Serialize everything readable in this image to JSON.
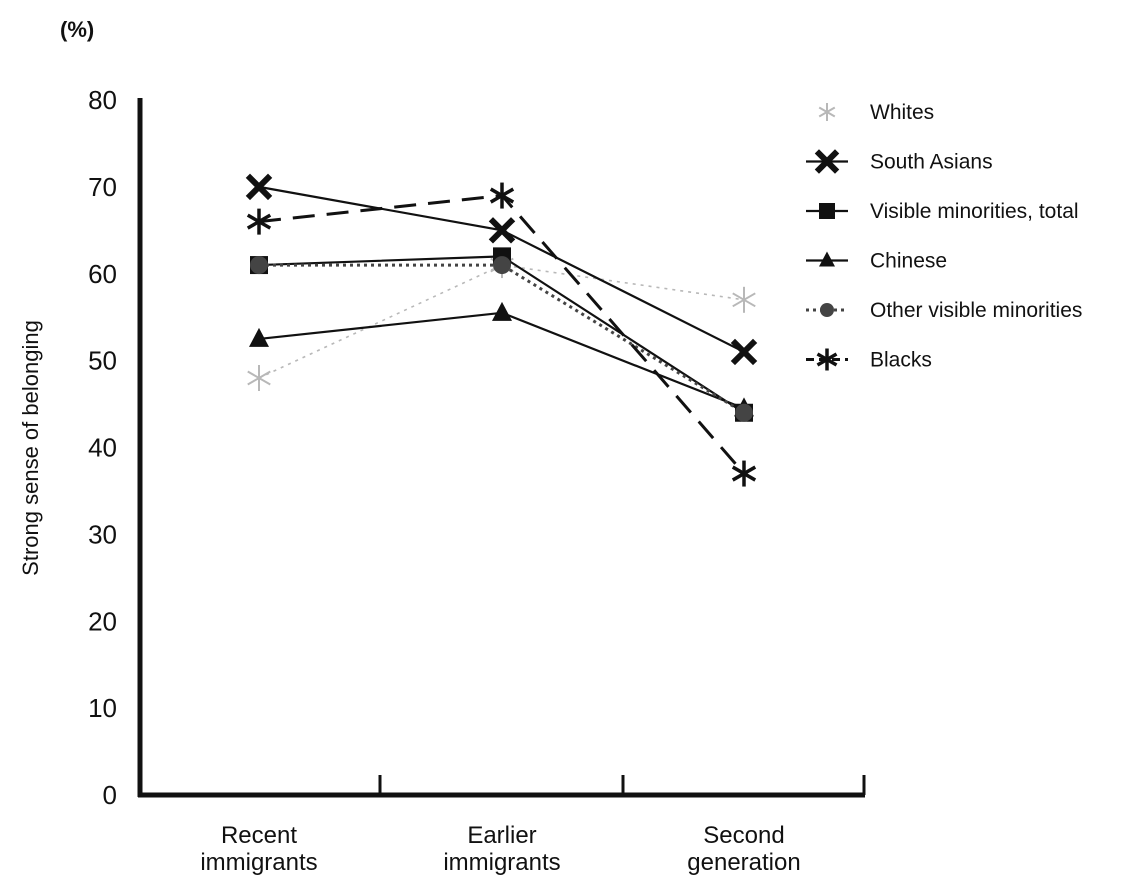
{
  "chart_data": {
    "type": "line",
    "unit_label": "(%)",
    "ylabel": "Strong sense of belonging",
    "xlabel": "",
    "ylim": [
      0,
      80
    ],
    "y_ticks": [
      "0",
      "10",
      "20",
      "30",
      "40",
      "50",
      "60",
      "70",
      "80"
    ],
    "categories": [
      [
        "Recent",
        "immigrants"
      ],
      [
        "Earlier",
        "immigrants"
      ],
      [
        "Second",
        "generation"
      ]
    ],
    "grid": false,
    "legend_position": "right",
    "series": [
      {
        "name": "Whites",
        "values": [
          48,
          61,
          57
        ],
        "color": "#b8b8b8",
        "dash": "dotted-light",
        "marker": "asterisk-light"
      },
      {
        "name": "South Asians",
        "values": [
          70,
          65,
          51
        ],
        "color": "#111111",
        "dash": "solid",
        "marker": "x"
      },
      {
        "name": "Visible minorities, total",
        "values": [
          61,
          62,
          44
        ],
        "color": "#111111",
        "dash": "solid",
        "marker": "square"
      },
      {
        "name": "Chinese",
        "values": [
          52.5,
          55.5,
          44.5
        ],
        "color": "#111111",
        "dash": "solid",
        "marker": "triangle"
      },
      {
        "name": "Other visible minorities",
        "values": [
          61,
          61,
          44
        ],
        "color": "#444444",
        "dash": "dotted",
        "marker": "circle"
      },
      {
        "name": "Blacks",
        "values": [
          66,
          69,
          37
        ],
        "color": "#111111",
        "dash": "dashed",
        "marker": "asterisk"
      }
    ]
  }
}
